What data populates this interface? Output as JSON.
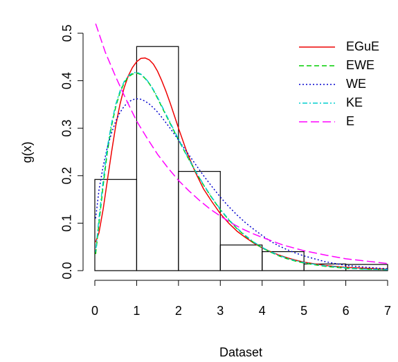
{
  "chart_data": {
    "type": "line",
    "title": "",
    "xlabel": "Dataset",
    "ylabel": "g(x)",
    "xlim": [
      0,
      7
    ],
    "ylim": [
      0,
      0.5
    ],
    "x_ticks": [
      "0",
      "1",
      "2",
      "3",
      "4",
      "5",
      "6",
      "7"
    ],
    "y_ticks": [
      "0.0",
      "0.1",
      "0.2",
      "0.3",
      "0.4",
      "0.5"
    ],
    "grid": false,
    "legend_position": "top-right",
    "histogram": {
      "bins": [
        [
          0,
          1
        ],
        [
          1,
          2
        ],
        [
          2,
          3
        ],
        [
          3,
          4
        ],
        [
          4,
          5
        ],
        [
          5,
          6
        ],
        [
          6,
          7
        ]
      ],
      "density": [
        0.192,
        0.472,
        0.209,
        0.054,
        0.04,
        0.014,
        0.013
      ],
      "color": "#000000"
    },
    "series": [
      {
        "name": "EGuE",
        "color": "#ee0000",
        "dash": "solid",
        "x": [
          0.02,
          0.1,
          0.2,
          0.3,
          0.4,
          0.5,
          0.6,
          0.7,
          0.8,
          0.9,
          1.0,
          1.1,
          1.2,
          1.3,
          1.4,
          1.5,
          1.6,
          1.7,
          1.8,
          1.9,
          2.0,
          2.2,
          2.4,
          2.6,
          2.8,
          3.0,
          3.2,
          3.4,
          3.6,
          3.8,
          4.0,
          4.2,
          4.4,
          4.6,
          4.8,
          5.0,
          5.5,
          6.0,
          6.5,
          7.0
        ],
        "y": [
          0.06,
          0.08,
          0.13,
          0.19,
          0.25,
          0.305,
          0.35,
          0.385,
          0.41,
          0.428,
          0.44,
          0.447,
          0.448,
          0.444,
          0.435,
          0.42,
          0.4,
          0.378,
          0.353,
          0.327,
          0.3,
          0.25,
          0.208,
          0.172,
          0.145,
          0.12,
          0.1,
          0.083,
          0.07,
          0.058,
          0.048,
          0.04,
          0.033,
          0.027,
          0.022,
          0.018,
          0.011,
          0.007,
          0.005,
          0.003
        ]
      },
      {
        "name": "EWE",
        "color": "#00cd00",
        "dash": "dashed",
        "x": [
          0.02,
          0.1,
          0.2,
          0.3,
          0.4,
          0.5,
          0.6,
          0.7,
          0.8,
          0.9,
          1.0,
          1.1,
          1.2,
          1.3,
          1.4,
          1.5,
          1.6,
          1.8,
          2.0,
          2.2,
          2.4,
          2.6,
          2.8,
          3.0,
          3.2,
          3.4,
          3.6,
          3.8,
          4.0,
          4.2,
          4.4,
          4.6,
          4.8,
          5.0,
          5.5,
          6.0,
          6.5,
          7.0
        ],
        "y": [
          0.035,
          0.1,
          0.18,
          0.25,
          0.305,
          0.345,
          0.375,
          0.395,
          0.408,
          0.414,
          0.416,
          0.413,
          0.405,
          0.394,
          0.38,
          0.363,
          0.345,
          0.31,
          0.275,
          0.242,
          0.21,
          0.18,
          0.153,
          0.128,
          0.107,
          0.088,
          0.073,
          0.059,
          0.048,
          0.039,
          0.031,
          0.025,
          0.02,
          0.016,
          0.009,
          0.005,
          0.003,
          0.002
        ]
      },
      {
        "name": "WE",
        "color": "#0000cd",
        "dash": "dotted",
        "x": [
          0.02,
          0.1,
          0.2,
          0.3,
          0.4,
          0.5,
          0.6,
          0.7,
          0.8,
          0.9,
          1.0,
          1.1,
          1.2,
          1.3,
          1.4,
          1.5,
          1.6,
          1.8,
          2.0,
          2.2,
          2.4,
          2.6,
          2.8,
          3.0,
          3.2,
          3.4,
          3.6,
          3.8,
          4.0,
          4.2,
          4.4,
          4.6,
          4.8,
          5.0,
          5.5,
          6.0,
          6.5,
          7.0
        ],
        "y": [
          0.11,
          0.17,
          0.22,
          0.26,
          0.29,
          0.315,
          0.333,
          0.346,
          0.355,
          0.36,
          0.362,
          0.361,
          0.357,
          0.351,
          0.343,
          0.334,
          0.323,
          0.3,
          0.275,
          0.25,
          0.225,
          0.2,
          0.177,
          0.155,
          0.135,
          0.117,
          0.101,
          0.087,
          0.074,
          0.062,
          0.052,
          0.044,
          0.037,
          0.031,
          0.019,
          0.011,
          0.007,
          0.004
        ]
      },
      {
        "name": "KE",
        "color": "#00cdcd",
        "dash": "dotdash",
        "x": [
          0.02,
          0.1,
          0.2,
          0.3,
          0.4,
          0.5,
          0.6,
          0.7,
          0.8,
          0.9,
          1.0,
          1.1,
          1.2,
          1.3,
          1.4,
          1.5,
          1.6,
          1.8,
          2.0,
          2.2,
          2.4,
          2.6,
          2.8,
          3.0,
          3.2,
          3.4,
          3.6,
          3.8,
          4.0,
          4.2,
          4.4,
          4.6,
          4.8,
          5.0,
          5.5,
          6.0,
          6.5,
          7.0
        ],
        "y": [
          0.04,
          0.11,
          0.19,
          0.26,
          0.31,
          0.35,
          0.378,
          0.398,
          0.41,
          0.416,
          0.418,
          0.414,
          0.406,
          0.395,
          0.381,
          0.365,
          0.347,
          0.312,
          0.277,
          0.243,
          0.211,
          0.181,
          0.154,
          0.129,
          0.108,
          0.089,
          0.074,
          0.06,
          0.049,
          0.04,
          0.032,
          0.026,
          0.021,
          0.017,
          0.01,
          0.006,
          0.003,
          0.002
        ]
      },
      {
        "name": "E",
        "color": "#ff00ff",
        "dash": "longdash",
        "x": [
          0.02,
          0.25,
          0.5,
          0.75,
          1.0,
          1.25,
          1.5,
          1.75,
          2.0,
          2.25,
          2.5,
          2.75,
          3.0,
          3.25,
          3.5,
          3.75,
          4.0,
          4.5,
          5.0,
          5.5,
          6.0,
          6.5,
          7.0
        ],
        "y": [
          0.52,
          0.46,
          0.408,
          0.36,
          0.315,
          0.279,
          0.245,
          0.216,
          0.19,
          0.168,
          0.148,
          0.13,
          0.115,
          0.101,
          0.089,
          0.079,
          0.07,
          0.054,
          0.042,
          0.033,
          0.025,
          0.02,
          0.015
        ]
      }
    ]
  }
}
